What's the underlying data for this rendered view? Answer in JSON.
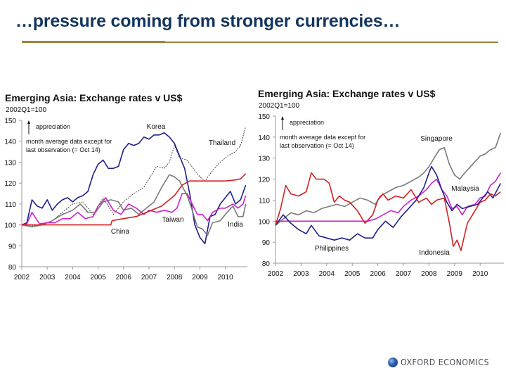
{
  "slide": {
    "title": "…pressure coming from stronger currencies…",
    "accent_color": "#a2813a",
    "title_color": "#13365e"
  },
  "footer": {
    "logo_text": "OXFORD ECONOMICS",
    "logo_icon": "globe-icon"
  },
  "chart_data": [
    {
      "type": "line",
      "title": "Emerging Asia:  Exchange rates v US$",
      "subtitle": "2002Q1=100",
      "xlabel": "",
      "ylabel": "",
      "ylim": [
        80,
        150
      ],
      "yticks": [
        80,
        90,
        100,
        110,
        120,
        130,
        140,
        150
      ],
      "xlim": [
        2002.0,
        2010.85
      ],
      "xticks": [
        "2002",
        "2003",
        "2004",
        "2005",
        "2006",
        "2007",
        "2008",
        "2009",
        "2010"
      ],
      "grid": false,
      "legend": "inline labels",
      "annotations": {
        "arrow_label": "appreciation",
        "note_line1": "month average data except for",
        "note_line2": "last observation (= Oct 14)"
      },
      "series": [
        {
          "name": "Korea",
          "color": "#1f1f8c",
          "style": "solid",
          "x": [
            2002.0,
            2002.2,
            2002.4,
            2002.6,
            2002.8,
            2003.0,
            2003.2,
            2003.4,
            2003.6,
            2003.8,
            2004.0,
            2004.2,
            2004.4,
            2004.6,
            2004.8,
            2005.0,
            2005.2,
            2005.4,
            2005.6,
            2005.8,
            2006.0,
            2006.2,
            2006.4,
            2006.6,
            2006.8,
            2007.0,
            2007.2,
            2007.4,
            2007.6,
            2007.8,
            2008.0,
            2008.2,
            2008.4,
            2008.6,
            2008.8,
            2009.0,
            2009.2,
            2009.4,
            2009.6,
            2009.8,
            2010.0,
            2010.2,
            2010.4,
            2010.6,
            2010.8
          ],
          "values": [
            100,
            101,
            112,
            109,
            108,
            112,
            107,
            110,
            112,
            113,
            111,
            113,
            114,
            116,
            124,
            129,
            131,
            127,
            127,
            128,
            136,
            139,
            138,
            139,
            142,
            141,
            143,
            143,
            144,
            142,
            139,
            133,
            127,
            115,
            100,
            94,
            91,
            104,
            105,
            110,
            113,
            116,
            110,
            112,
            119
          ]
        },
        {
          "name": "Thailand",
          "color": "#222222",
          "style": "dashed",
          "x": [
            2002.0,
            2002.4,
            2002.8,
            2003.2,
            2003.6,
            2004.0,
            2004.4,
            2004.8,
            2005.2,
            2005.6,
            2006.0,
            2006.4,
            2006.8,
            2007.0,
            2007.3,
            2007.6,
            2007.8,
            2008.0,
            2008.2,
            2008.5,
            2008.8,
            2009.0,
            2009.2,
            2009.5,
            2009.8,
            2010.1,
            2010.4,
            2010.6,
            2010.8
          ],
          "values": [
            100,
            99.5,
            100,
            102,
            106,
            110,
            111,
            105,
            113,
            105,
            111,
            115,
            118,
            122,
            128,
            127,
            130,
            138,
            132,
            131,
            126,
            123,
            121,
            126,
            130,
            133,
            135,
            138,
            147
          ]
        },
        {
          "name": "Taiwan",
          "color": "#7a7a7a",
          "style": "solid",
          "x": [
            2002.0,
            2002.4,
            2002.8,
            2003.2,
            2003.6,
            2004.0,
            2004.3,
            2004.6,
            2004.9,
            2005.2,
            2005.5,
            2005.8,
            2006.0,
            2006.3,
            2006.6,
            2006.9,
            2007.2,
            2007.5,
            2007.8,
            2008.0,
            2008.2,
            2008.5,
            2008.7,
            2008.9,
            2009.1,
            2009.3,
            2009.5,
            2009.8,
            2010.0,
            2010.3,
            2010.5,
            2010.7,
            2010.8
          ],
          "values": [
            100,
            99,
            100,
            102,
            105,
            107,
            110,
            106,
            106,
            111,
            112,
            111,
            107,
            108,
            105,
            108,
            111,
            118,
            124,
            123,
            121,
            114,
            107,
            99,
            98,
            95,
            101,
            102,
            105,
            109,
            104,
            104,
            110
          ]
        },
        {
          "name": "India",
          "color": "#cc22cc",
          "style": "solid",
          "x": [
            2002.0,
            2002.2,
            2002.4,
            2002.7,
            2003.0,
            2003.3,
            2003.6,
            2003.9,
            2004.2,
            2004.5,
            2004.8,
            2005.0,
            2005.3,
            2005.6,
            2005.9,
            2006.2,
            2006.5,
            2006.8,
            2007.0,
            2007.3,
            2007.6,
            2007.9,
            2008.1,
            2008.3,
            2008.5,
            2008.7,
            2008.9,
            2009.1,
            2009.3,
            2009.5,
            2009.8,
            2010.0,
            2010.3,
            2010.5,
            2010.7,
            2010.8
          ],
          "values": [
            100,
            100.5,
            106,
            100.5,
            101,
            101,
            103,
            103,
            106,
            103,
            104,
            109,
            113,
            107,
            105,
            110,
            108,
            105,
            107,
            106,
            107,
            106,
            108,
            115,
            115,
            110,
            105,
            105,
            102,
            106,
            108,
            108,
            110,
            108,
            110,
            114
          ]
        },
        {
          "name": "China",
          "color": "#d42020",
          "style": "solid",
          "x": [
            2002.0,
            2002.5,
            2003.0,
            2004.0,
            2005.0,
            2005.5,
            2005.55,
            2006.0,
            2006.5,
            2007.0,
            2007.5,
            2008.0,
            2008.3,
            2008.6,
            2009.0,
            2009.5,
            2010.0,
            2010.4,
            2010.6,
            2010.8
          ],
          "values": [
            100,
            100,
            100,
            100,
            100,
            100,
            102,
            103,
            104,
            106.5,
            109,
            114,
            119,
            121,
            121,
            121,
            121,
            121.5,
            122,
            124.5
          ]
        }
      ]
    },
    {
      "type": "line",
      "title": "Emerging Asia:  Exchange rates v US$",
      "subtitle": "2002Q1=100",
      "xlabel": "",
      "ylabel": "",
      "ylim": [
        80,
        150
      ],
      "yticks": [
        80,
        90,
        100,
        110,
        120,
        130,
        140,
        150
      ],
      "xlim": [
        2002.0,
        2010.85
      ],
      "xticks": [
        "2002",
        "2003",
        "2004",
        "2005",
        "2006",
        "2007",
        "2008",
        "2009",
        "2010"
      ],
      "grid": false,
      "legend": "inline labels",
      "annotations": {
        "arrow_label": "appreciation",
        "note_line1": "month average data except for",
        "note_line2": "last observation (= Oct 14)"
      },
      "series": [
        {
          "name": "Singapore",
          "color": "#7a7a7a",
          "style": "solid",
          "x": [
            2002.0,
            2002.3,
            2002.6,
            2002.9,
            2003.2,
            2003.5,
            2003.8,
            2004.1,
            2004.4,
            2004.7,
            2005.0,
            2005.3,
            2005.6,
            2005.9,
            2006.1,
            2006.4,
            2006.7,
            2007.0,
            2007.3,
            2007.6,
            2007.8,
            2008.0,
            2008.2,
            2008.4,
            2008.6,
            2008.8,
            2009.0,
            2009.2,
            2009.4,
            2009.7,
            2010.0,
            2010.2,
            2010.4,
            2010.6,
            2010.8
          ],
          "values": [
            98,
            101,
            104,
            103,
            105,
            104,
            106,
            107,
            108,
            107,
            109,
            111,
            110,
            108,
            112,
            114,
            116,
            117,
            119,
            121,
            123,
            126,
            130,
            134,
            135,
            127,
            122,
            120,
            123,
            127,
            131,
            132,
            134,
            135,
            142
          ]
        },
        {
          "name": "Malaysia",
          "color": "#cc22cc",
          "style": "solid",
          "x": [
            2002.0,
            2003.0,
            2004.0,
            2005.0,
            2005.6,
            2005.9,
            2006.2,
            2006.5,
            2006.8,
            2007.0,
            2007.3,
            2007.6,
            2007.9,
            2008.1,
            2008.3,
            2008.5,
            2008.7,
            2008.9,
            2009.1,
            2009.3,
            2009.5,
            2009.8,
            2010.0,
            2010.2,
            2010.4,
            2010.6,
            2010.8
          ],
          "values": [
            100,
            100,
            100,
            100,
            100,
            101,
            103,
            105,
            104,
            107,
            110,
            112,
            115,
            118,
            120,
            115,
            112,
            106,
            107,
            103,
            107,
            108,
            111,
            112,
            117,
            119,
            123
          ]
        },
        {
          "name": "Philippines",
          "color": "#1f1f8c",
          "style": "solid",
          "x": [
            2002.0,
            2002.3,
            2002.6,
            2002.9,
            2003.2,
            2003.4,
            2003.7,
            2004.0,
            2004.3,
            2004.6,
            2004.9,
            2005.2,
            2005.5,
            2005.8,
            2006.0,
            2006.3,
            2006.6,
            2006.9,
            2007.2,
            2007.5,
            2007.8,
            2008.0,
            2008.1,
            2008.3,
            2008.5,
            2008.7,
            2008.9,
            2009.1,
            2009.3,
            2009.6,
            2009.9,
            2010.1,
            2010.3,
            2010.5,
            2010.8
          ],
          "values": [
            98,
            103,
            99,
            96,
            94,
            98,
            93,
            92,
            91,
            92,
            91,
            94,
            92,
            92,
            96,
            100,
            97,
            102,
            106,
            110,
            116,
            123,
            126,
            122,
            115,
            109,
            105,
            108,
            106,
            107,
            108,
            111,
            114,
            111,
            118
          ]
        },
        {
          "name": "Indonesia",
          "color": "#d42020",
          "style": "solid",
          "x": [
            2002.0,
            2002.2,
            2002.4,
            2002.6,
            2002.9,
            2003.2,
            2003.4,
            2003.6,
            2003.9,
            2004.1,
            2004.3,
            2004.5,
            2004.7,
            2004.9,
            2005.2,
            2005.5,
            2005.8,
            2006.0,
            2006.2,
            2006.4,
            2006.7,
            2007.0,
            2007.3,
            2007.6,
            2007.9,
            2008.1,
            2008.3,
            2008.6,
            2008.8,
            2008.95,
            2009.1,
            2009.25,
            2009.5,
            2009.8,
            2010.0,
            2010.2,
            2010.4,
            2010.6,
            2010.8
          ],
          "values": [
            98,
            106,
            117,
            113,
            112,
            114,
            123,
            120,
            120,
            118,
            109,
            112,
            110,
            109,
            105,
            99,
            103,
            110,
            113,
            110,
            112,
            111,
            115,
            109,
            111,
            108,
            110,
            111,
            99,
            88,
            91,
            86,
            99,
            105,
            109,
            110,
            113,
            112,
            114
          ]
        }
      ]
    }
  ]
}
